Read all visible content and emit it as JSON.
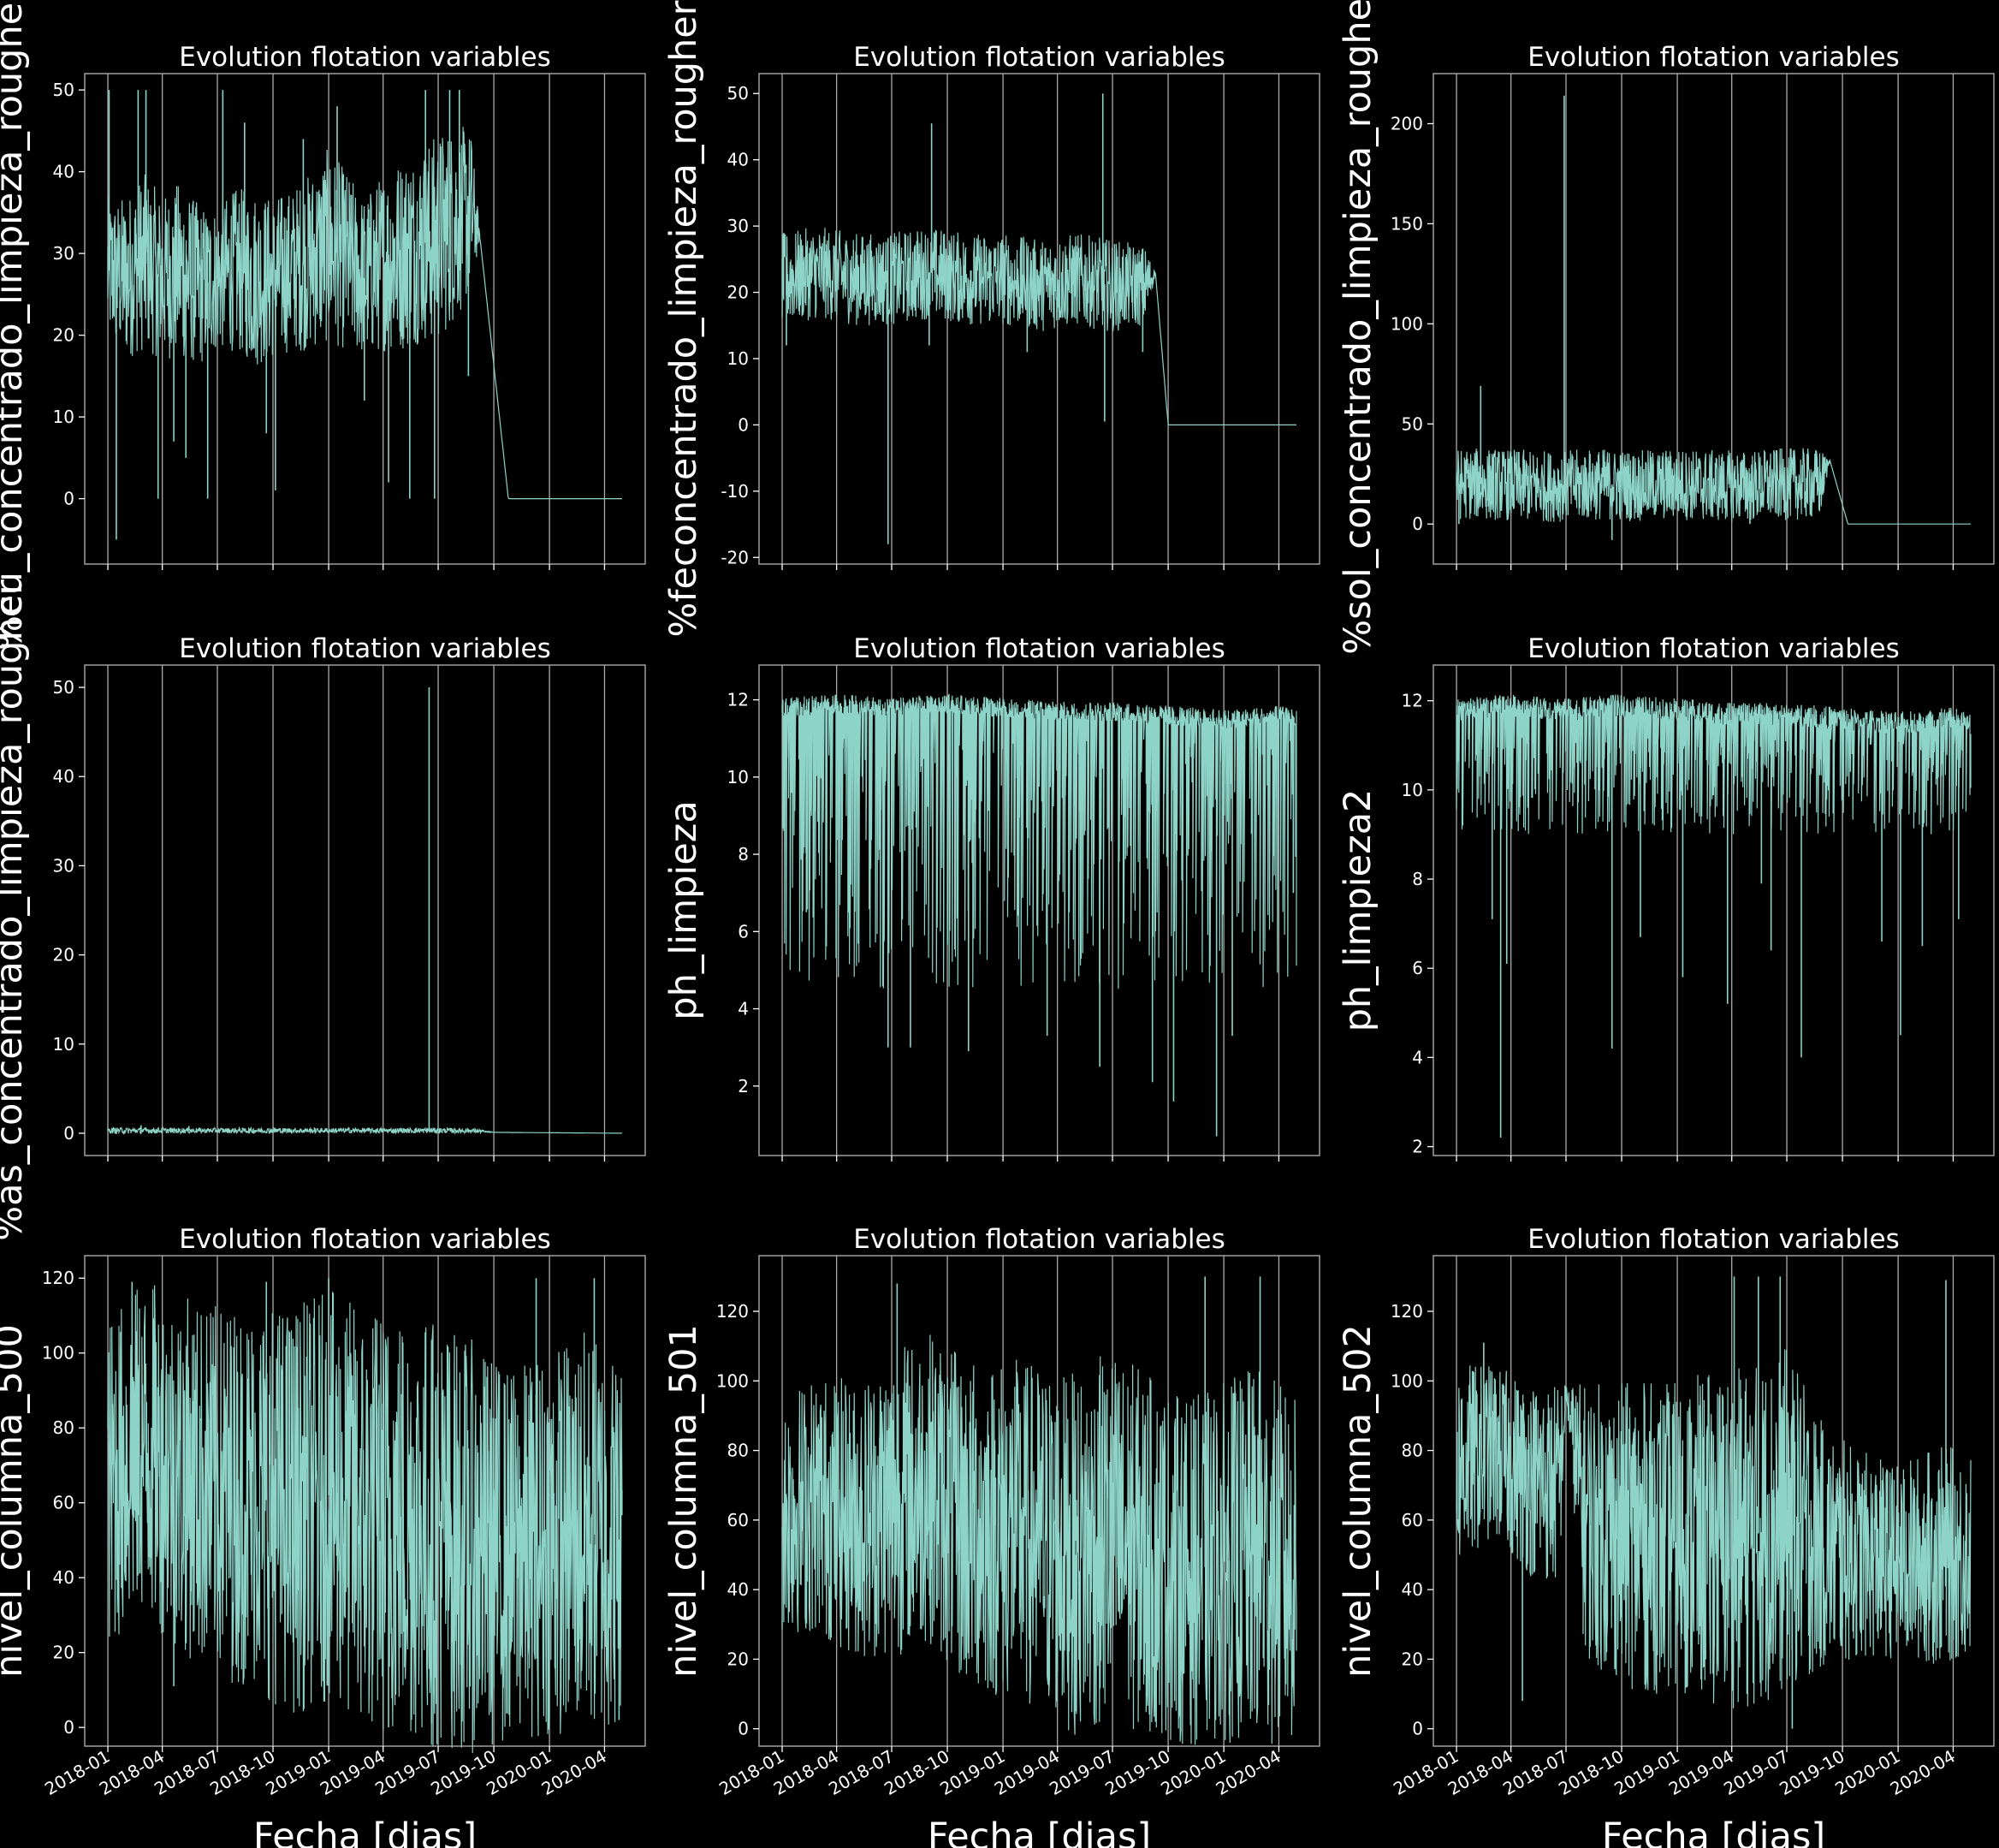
{
  "figure": {
    "background": "#000000",
    "line_color": "#8dd3c7",
    "text_color": "#ffffff",
    "grid_color": "#aaaaaa",
    "frame_color": "#aaaaaa"
  },
  "shared_x": {
    "label": "Fecha [dias]",
    "range": [
      "2018-01-01",
      "2020-04-30"
    ],
    "ticks": [
      "2018-01",
      "2018-04",
      "2018-07",
      "2018-10",
      "2019-01",
      "2019-04",
      "2019-07",
      "2019-10",
      "2020-01",
      "2020-04"
    ],
    "grid": "vertical lines at x ticks",
    "tick_label_rotation": "30 degrees"
  },
  "chart_data": [
    {
      "type": "line",
      "title": "Evolution flotation variables",
      "xlabel": "",
      "ylabel": "%cu_concentrado_limpieza_rougher",
      "ylim": [
        -8,
        52
      ],
      "yticks": [
        0,
        10,
        20,
        30,
        40,
        50
      ],
      "pattern": "noisy",
      "x": [
        "2018-01-01",
        "2018-02-01",
        "2018-03-01",
        "2018-04-01",
        "2018-05-01",
        "2018-06-01",
        "2018-07-01",
        "2018-08-01",
        "2018-09-01",
        "2018-10-01",
        "2018-11-01",
        "2018-12-01",
        "2019-01-01",
        "2019-02-01",
        "2019-03-01",
        "2019-04-01",
        "2019-05-01",
        "2019-06-01",
        "2019-07-01",
        "2019-08-01",
        "2019-08-25",
        "2019-09-08",
        "2019-10-25",
        "2020-04-30"
      ],
      "y": [
        28,
        27,
        29,
        27,
        28,
        26,
        27,
        28,
        27,
        27,
        28,
        29,
        31,
        29,
        27,
        29,
        30,
        31,
        32,
        34,
        35,
        32,
        0,
        0
      ],
      "band_width": [
        9,
        10,
        11,
        10,
        11,
        10,
        9,
        10,
        11,
        10,
        10,
        11,
        12,
        11,
        10,
        11,
        12,
        12,
        13,
        12,
        10,
        0,
        0,
        0
      ],
      "spikes": [
        {
          "x": "2018-01-03",
          "y": 50
        },
        {
          "x": "2018-01-15",
          "y": -5
        },
        {
          "x": "2018-02-20",
          "y": 50
        },
        {
          "x": "2018-03-05",
          "y": 50
        },
        {
          "x": "2018-03-25",
          "y": 0
        },
        {
          "x": "2018-04-20",
          "y": 7
        },
        {
          "x": "2018-05-10",
          "y": 5
        },
        {
          "x": "2018-06-15",
          "y": 0
        },
        {
          "x": "2018-07-10",
          "y": 50
        },
        {
          "x": "2018-08-15",
          "y": 46
        },
        {
          "x": "2018-09-20",
          "y": 8
        },
        {
          "x": "2018-10-05",
          "y": 1
        },
        {
          "x": "2018-11-20",
          "y": 44
        },
        {
          "x": "2019-01-15",
          "y": 48
        },
        {
          "x": "2019-03-01",
          "y": 12
        },
        {
          "x": "2019-04-10",
          "y": 2
        },
        {
          "x": "2019-05-15",
          "y": 0
        },
        {
          "x": "2019-06-10",
          "y": 50
        },
        {
          "x": "2019-06-25",
          "y": 0
        },
        {
          "x": "2019-07-20",
          "y": 50
        },
        {
          "x": "2019-08-05",
          "y": 50
        },
        {
          "x": "2019-08-20",
          "y": 15
        }
      ]
    },
    {
      "type": "line",
      "title": "Evolution flotation variables",
      "xlabel": "",
      "ylabel": "%feconcentrado_limpieza_rougher",
      "ylim": [
        -21,
        53
      ],
      "yticks": [
        -20,
        -10,
        0,
        10,
        20,
        30,
        40,
        50
      ],
      "pattern": "noisy",
      "x": [
        "2018-01-01",
        "2018-03-01",
        "2018-05-01",
        "2018-07-01",
        "2018-09-01",
        "2018-11-01",
        "2019-01-01",
        "2019-03-01",
        "2019-05-01",
        "2019-07-01",
        "2019-08-25",
        "2019-09-10",
        "2019-10-01",
        "2020-04-30"
      ],
      "y": [
        22,
        23,
        22,
        22,
        23,
        22,
        22,
        21,
        22,
        21,
        21,
        23,
        0,
        0
      ],
      "band_width": [
        7,
        7,
        7,
        7,
        7,
        7,
        7,
        7,
        7,
        7,
        6,
        0,
        0,
        0
      ],
      "spikes": [
        {
          "x": "2018-01-08",
          "y": 12
        },
        {
          "x": "2018-06-25",
          "y": -18
        },
        {
          "x": "2018-09-05",
          "y": 45.5
        },
        {
          "x": "2018-09-01",
          "y": 12
        },
        {
          "x": "2019-06-15",
          "y": 50
        },
        {
          "x": "2019-06-18",
          "y": 0.5
        },
        {
          "x": "2019-02-10",
          "y": 11
        },
        {
          "x": "2019-08-20",
          "y": 11
        }
      ]
    },
    {
      "type": "line",
      "title": "Evolution flotation variables",
      "xlabel": "",
      "ylabel": "%sol_concentrado_limpieza_rougher",
      "ylim": [
        -20,
        225
      ],
      "yticks": [
        0,
        50,
        100,
        150,
        200
      ],
      "pattern": "noisy",
      "x": [
        "2018-01-01",
        "2018-03-01",
        "2018-05-01",
        "2018-07-01",
        "2018-09-01",
        "2018-11-01",
        "2019-01-01",
        "2019-03-01",
        "2019-05-01",
        "2019-07-01",
        "2019-08-25",
        "2019-09-10",
        "2019-10-10",
        "2020-04-30"
      ],
      "y": [
        20,
        20,
        19,
        19,
        20,
        19,
        20,
        19,
        19,
        20,
        20,
        32,
        0,
        0
      ],
      "band_width": [
        18,
        18,
        18,
        18,
        18,
        18,
        18,
        18,
        18,
        18,
        18,
        0,
        0,
        0
      ],
      "spikes": [
        {
          "x": "2018-02-10",
          "y": 69
        },
        {
          "x": "2018-06-28",
          "y": 214
        },
        {
          "x": "2018-09-15",
          "y": -8
        },
        {
          "x": "2018-01-05",
          "y": 0
        },
        {
          "x": "2019-05-01",
          "y": 0
        }
      ]
    },
    {
      "type": "line",
      "title": "Evolution flotation variables",
      "xlabel": "",
      "ylabel": "%as_concentrado_limpieza_rougher",
      "ylim": [
        -2.5,
        52.5
      ],
      "yticks": [
        0,
        10,
        20,
        30,
        40,
        50
      ],
      "pattern": "noisy",
      "x": [
        "2018-01-01",
        "2018-06-01",
        "2018-12-01",
        "2019-06-01",
        "2019-08-25",
        "2019-10-01",
        "2020-04-30"
      ],
      "y": [
        0.3,
        0.3,
        0.3,
        0.3,
        0.3,
        0.1,
        0.0
      ],
      "band_width": [
        0.35,
        0.3,
        0.3,
        0.3,
        0.3,
        0,
        0
      ],
      "spikes": [
        {
          "x": "2019-06-16",
          "y": 50
        },
        {
          "x": "2018-02-25",
          "y": 0.9
        },
        {
          "x": "2018-05-15",
          "y": 0.8
        }
      ]
    },
    {
      "type": "line",
      "title": "Evolution flotation variables",
      "xlabel": "",
      "ylabel": "ph_limpieza",
      "ylim": [
        0.2,
        12.9
      ],
      "yticks": [
        2,
        4,
        6,
        8,
        10,
        12
      ],
      "pattern": "noisy",
      "x": [
        "2018-01-01",
        "2018-04-01",
        "2018-07-01",
        "2018-10-01",
        "2019-01-01",
        "2019-04-01",
        "2019-07-01",
        "2019-10-01",
        "2020-01-01",
        "2020-04-01",
        "2020-04-30"
      ],
      "y": [
        11.8,
        11.9,
        11.8,
        11.9,
        11.8,
        11.7,
        11.7,
        11.6,
        11.5,
        11.6,
        11.5
      ],
      "band_width": [
        0.25,
        0.25,
        0.25,
        0.25,
        0.25,
        0.25,
        0.25,
        0.25,
        0.25,
        0.25,
        0.25
      ],
      "dips_per_year": 160,
      "dip_range": [
        4.5,
        11
      ],
      "spikes": [
        {
          "x": "2018-06-25",
          "y": 3.0
        },
        {
          "x": "2018-08-01",
          "y": 3.0
        },
        {
          "x": "2018-11-05",
          "y": 2.9
        },
        {
          "x": "2019-06-10",
          "y": 2.5
        },
        {
          "x": "2019-09-05",
          "y": 2.1
        },
        {
          "x": "2019-10-10",
          "y": 1.6
        },
        {
          "x": "2019-12-20",
          "y": 0.7
        },
        {
          "x": "2018-02-10",
          "y": 6.5
        },
        {
          "x": "2019-03-15",
          "y": 3.3
        },
        {
          "x": "2020-04-25",
          "y": 7.0
        },
        {
          "x": "2020-01-15",
          "y": 3.3
        }
      ]
    },
    {
      "type": "line",
      "title": "Evolution flotation variables",
      "xlabel": "",
      "ylabel": "ph_limpieza2",
      "ylim": [
        1.8,
        12.8
      ],
      "yticks": [
        2,
        4,
        6,
        8,
        10,
        12
      ],
      "pattern": "noisy",
      "x": [
        "2018-01-01",
        "2018-04-01",
        "2018-07-01",
        "2018-10-01",
        "2019-01-01",
        "2019-04-01",
        "2019-07-01",
        "2019-10-01",
        "2020-01-01",
        "2020-04-01",
        "2020-04-30"
      ],
      "y": [
        11.8,
        11.9,
        11.8,
        11.9,
        11.8,
        11.7,
        11.7,
        11.6,
        11.5,
        11.6,
        11.5
      ],
      "band_width": [
        0.25,
        0.25,
        0.25,
        0.25,
        0.25,
        0.25,
        0.25,
        0.25,
        0.25,
        0.25,
        0.25
      ],
      "dips_per_year": 60,
      "dip_range": [
        9,
        11.2
      ],
      "spikes": [
        {
          "x": "2018-03-01",
          "y": 7.1
        },
        {
          "x": "2018-03-15",
          "y": 2.2
        },
        {
          "x": "2018-03-25",
          "y": 6.1
        },
        {
          "x": "2018-07-15",
          "y": 10.5
        },
        {
          "x": "2018-09-15",
          "y": 4.2
        },
        {
          "x": "2018-11-01",
          "y": 6.7
        },
        {
          "x": "2019-01-10",
          "y": 5.8
        },
        {
          "x": "2019-03-25",
          "y": 5.2
        },
        {
          "x": "2019-06-05",
          "y": 6.4
        },
        {
          "x": "2019-07-25",
          "y": 4.0
        },
        {
          "x": "2019-12-05",
          "y": 6.6
        },
        {
          "x": "2020-01-05",
          "y": 4.5
        },
        {
          "x": "2020-02-10",
          "y": 6.5
        },
        {
          "x": "2020-04-10",
          "y": 7.1
        },
        {
          "x": "2019-05-20",
          "y": 7.9
        }
      ]
    },
    {
      "type": "line",
      "title": "Evolution flotation variables",
      "xlabel": "Fecha [dias]",
      "ylabel": "nivel_columna_500",
      "ylim": [
        -5,
        126
      ],
      "yticks": [
        0,
        20,
        40,
        60,
        80,
        100,
        120
      ],
      "pattern": "noisy",
      "x": [
        "2018-01-01",
        "2018-03-01",
        "2018-05-01",
        "2018-07-01",
        "2018-09-01",
        "2018-11-01",
        "2019-01-01",
        "2019-03-01",
        "2019-05-01",
        "2019-07-01",
        "2019-09-01",
        "2019-11-01",
        "2020-01-01",
        "2020-03-01",
        "2020-04-30"
      ],
      "y": [
        65,
        75,
        68,
        63,
        62,
        58,
        62,
        55,
        55,
        52,
        48,
        46,
        50,
        52,
        50
      ],
      "band_width": [
        45,
        45,
        48,
        50,
        52,
        55,
        55,
        58,
        58,
        58,
        55,
        50,
        52,
        55,
        50
      ],
      "spikes": [
        {
          "x": "2018-02-10",
          "y": 119
        },
        {
          "x": "2018-09-20",
          "y": 119
        },
        {
          "x": "2019-01-01",
          "y": 120
        },
        {
          "x": "2019-04-10",
          "y": 0
        },
        {
          "x": "2019-06-20",
          "y": 1
        },
        {
          "x": "2019-12-10",
          "y": 120
        },
        {
          "x": "2020-03-15",
          "y": 120
        },
        {
          "x": "2020-04-25",
          "y": 2
        },
        {
          "x": "2018-04-20",
          "y": 11
        }
      ]
    },
    {
      "type": "line",
      "title": "Evolution flotation variables",
      "xlabel": "Fecha [dias]",
      "ylabel": "nivel_columna_501",
      "ylim": [
        -5,
        136
      ],
      "yticks": [
        0,
        20,
        40,
        60,
        80,
        100,
        120
      ],
      "pattern": "noisy",
      "x": [
        "2018-01-01",
        "2018-03-01",
        "2018-05-01",
        "2018-07-01",
        "2018-09-01",
        "2018-11-01",
        "2019-01-01",
        "2019-03-01",
        "2019-05-01",
        "2019-07-01",
        "2019-09-01",
        "2019-11-01",
        "2020-01-01",
        "2020-03-01",
        "2020-04-30"
      ],
      "y": [
        62,
        65,
        60,
        65,
        70,
        58,
        58,
        55,
        50,
        55,
        50,
        45,
        48,
        50,
        45
      ],
      "band_width": [
        35,
        38,
        40,
        45,
        45,
        48,
        50,
        50,
        52,
        55,
        52,
        50,
        52,
        55,
        50
      ],
      "spikes": [
        {
          "x": "2018-07-10",
          "y": 128
        },
        {
          "x": "2019-05-01",
          "y": 5
        },
        {
          "x": "2019-12-01",
          "y": 130
        },
        {
          "x": "2020-03-01",
          "y": 130
        },
        {
          "x": "2019-09-10",
          "y": 2
        },
        {
          "x": "2020-01-10",
          "y": 4
        }
      ]
    },
    {
      "type": "line",
      "title": "Evolution flotation variables",
      "xlabel": "Fecha [dias]",
      "ylabel": "nivel_columna_502",
      "ylim": [
        -5,
        136
      ],
      "yticks": [
        0,
        20,
        40,
        60,
        80,
        100,
        120
      ],
      "pattern": "noisy",
      "x": [
        "2018-01-01",
        "2018-03-01",
        "2018-05-01",
        "2018-06-20",
        "2018-07-01",
        "2018-08-01",
        "2018-09-01",
        "2018-11-01",
        "2019-01-01",
        "2019-03-01",
        "2019-05-01",
        "2019-07-01",
        "2019-09-01",
        "2019-11-01",
        "2020-01-01",
        "2020-03-01",
        "2020-04-30"
      ],
      "y": [
        75,
        80,
        72,
        70,
        97,
        60,
        58,
        55,
        55,
        55,
        55,
        60,
        52,
        50,
        48,
        50,
        50
      ],
      "band_width": [
        30,
        25,
        28,
        30,
        2,
        40,
        42,
        45,
        45,
        48,
        50,
        50,
        35,
        30,
        28,
        32,
        30
      ],
      "spikes": [
        {
          "x": "2018-02-15",
          "y": 111
        },
        {
          "x": "2019-04-05",
          "y": 130
        },
        {
          "x": "2019-05-15",
          "y": 130
        },
        {
          "x": "2019-06-20",
          "y": 130
        },
        {
          "x": "2019-07-10",
          "y": 0
        },
        {
          "x": "2020-03-20",
          "y": 129
        },
        {
          "x": "2018-04-20",
          "y": 8
        }
      ]
    }
  ]
}
